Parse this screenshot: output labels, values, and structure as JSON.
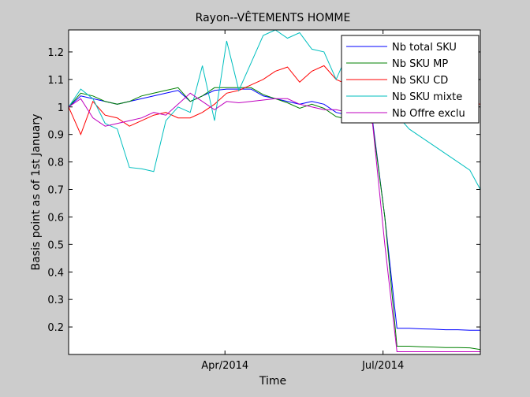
{
  "chart_data": {
    "type": "line",
    "title": "Rayon--VÊTEMENTS HOMME",
    "xlabel": "Time",
    "ylabel": "Basis point as of 1st January",
    "x_ticks": [
      "Apr/2014",
      "Jul/2014"
    ],
    "x_tick_dates": [
      "2014-04-01",
      "2014-07-01"
    ],
    "x_range": [
      "2014-01-01",
      "2014-08-26"
    ],
    "ylim": [
      0.1,
      1.28
    ],
    "y_ticks": [
      0.2,
      0.3,
      0.4,
      0.5,
      0.6,
      0.7,
      0.8,
      0.9,
      1,
      1.1,
      1.2
    ],
    "y_tick_labels": [
      "0.2",
      "0.3",
      "0.4",
      "0.5",
      "0.6",
      "0.7",
      "0.8",
      "0.9",
      "1",
      "1.1",
      "1.2"
    ],
    "grid": false,
    "legend_position": "top-right",
    "x_dates": [
      "2014-01-01",
      "2014-01-08",
      "2014-01-15",
      "2014-01-22",
      "2014-01-29",
      "2014-02-05",
      "2014-02-12",
      "2014-02-19",
      "2014-02-26",
      "2014-03-05",
      "2014-03-12",
      "2014-03-19",
      "2014-03-26",
      "2014-04-02",
      "2014-04-09",
      "2014-04-16",
      "2014-04-23",
      "2014-04-30",
      "2014-05-07",
      "2014-05-14",
      "2014-05-21",
      "2014-05-28",
      "2014-06-04",
      "2014-06-11",
      "2014-06-18",
      "2014-06-25",
      "2014-07-02",
      "2014-07-09",
      "2014-07-16",
      "2014-07-23",
      "2014-07-30",
      "2014-08-06",
      "2014-08-13",
      "2014-08-20",
      "2014-08-26"
    ],
    "series": [
      {
        "name": "Nb total SKU",
        "color": "#0000ff",
        "values": [
          1.0,
          1.04,
          1.03,
          1.02,
          1.01,
          1.02,
          1.03,
          1.04,
          1.05,
          1.06,
          1.02,
          1.04,
          1.06,
          1.065,
          1.065,
          1.065,
          1.04,
          1.03,
          1.02,
          1.01,
          1.02,
          1.01,
          0.98,
          0.97,
          0.97,
          0.95,
          0.6,
          0.195,
          0.195,
          0.193,
          0.192,
          0.19,
          0.19,
          0.188,
          0.188
        ]
      },
      {
        "name": "Nb SKU MP",
        "color": "#008000",
        "values": [
          1.0,
          1.05,
          1.04,
          1.02,
          1.01,
          1.02,
          1.04,
          1.05,
          1.06,
          1.07,
          1.02,
          1.04,
          1.07,
          1.07,
          1.07,
          1.07,
          1.045,
          1.03,
          1.015,
          0.995,
          1.01,
          0.995,
          0.965,
          0.955,
          0.96,
          0.94,
          0.6,
          0.13,
          0.13,
          0.128,
          0.127,
          0.125,
          0.125,
          0.124,
          0.118
        ]
      },
      {
        "name": "Nb SKU CD",
        "color": "#ff0000",
        "values": [
          1.0,
          0.9,
          1.02,
          0.97,
          0.96,
          0.93,
          0.95,
          0.97,
          0.98,
          0.96,
          0.96,
          0.98,
          1.01,
          1.05,
          1.06,
          1.08,
          1.1,
          1.13,
          1.145,
          1.09,
          1.13,
          1.15,
          1.1,
          1.08,
          1.06,
          1.05,
          1.03,
          1.02,
          1.02,
          1.01,
          1.02,
          1.01,
          1.01,
          1.015,
          1.01
        ]
      },
      {
        "name": "Nb SKU mixte",
        "color": "#00bfbf",
        "values": [
          1.0,
          1.065,
          1.03,
          0.94,
          0.92,
          0.78,
          0.775,
          0.765,
          0.95,
          1.0,
          0.98,
          1.15,
          0.95,
          1.24,
          1.06,
          1.16,
          1.26,
          1.28,
          1.25,
          1.27,
          1.21,
          1.2,
          1.1,
          1.2,
          1.15,
          1.1,
          1.05,
          0.97,
          0.92,
          0.89,
          0.86,
          0.83,
          0.8,
          0.77,
          0.7
        ]
      },
      {
        "name": "Nb Offre exclu",
        "color": "#bf00bf",
        "values": [
          1.0,
          1.03,
          0.96,
          0.93,
          0.94,
          0.95,
          0.96,
          0.98,
          0.97,
          1.01,
          1.05,
          1.02,
          0.99,
          1.02,
          1.015,
          1.02,
          1.025,
          1.03,
          1.03,
          1.01,
          1.0,
          0.99,
          0.99,
          0.98,
          0.97,
          0.94,
          0.5,
          0.11,
          0.11,
          0.11,
          0.11,
          0.11,
          0.11,
          0.11,
          0.11
        ]
      }
    ]
  }
}
